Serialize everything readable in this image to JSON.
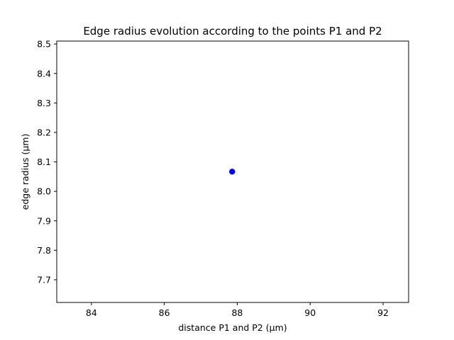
{
  "chart_data": {
    "type": "scatter",
    "title": "Edge radius evolution according to the points P1 and P2",
    "xlabel": "distance P1 and P2 (µm)",
    "ylabel": "edge radius (µm)",
    "xlim": [
      83.05,
      92.7
    ],
    "ylim": [
      7.623,
      8.51
    ],
    "x_ticks": [
      84,
      86,
      88,
      90,
      92
    ],
    "y_ticks": [
      7.7,
      7.8,
      7.9,
      8.0,
      8.1,
      8.2,
      8.3,
      8.4,
      8.5
    ],
    "points": [
      {
        "x": 87.86,
        "y": 8.067
      }
    ],
    "marker_color": "#0000ff",
    "grid": false,
    "legend": "none"
  }
}
